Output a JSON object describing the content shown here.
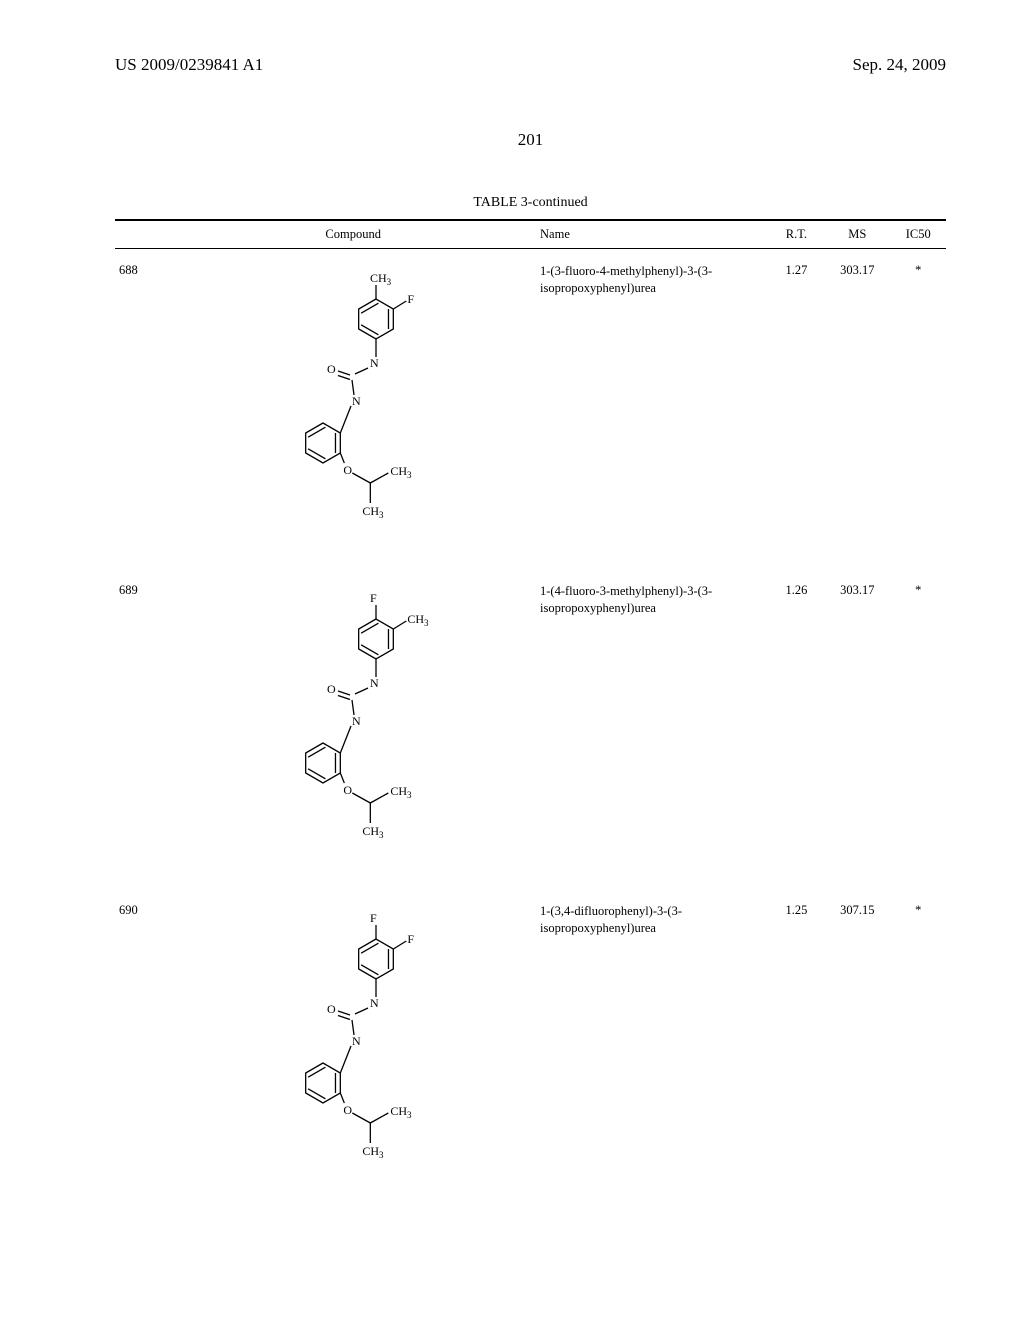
{
  "header": {
    "pub_number": "US 2009/0239841 A1",
    "pub_date": "Sep. 24, 2009"
  },
  "page_number": "201",
  "table": {
    "caption": "TABLE 3-continued",
    "columns": {
      "id": "",
      "compound": "Compound",
      "name": "Name",
      "rt": "R.T.",
      "ms": "MS",
      "ic50": "IC50"
    },
    "rows": [
      {
        "id": "688",
        "name": "1-(3-fluoro-4-methylphenyl)-3-(3-isopropoxyphenyl)urea",
        "rt": "1.27",
        "ms": "303.17",
        "ic50": "*",
        "sub1": "CH",
        "sub1_sub": "3",
        "sub2": "F"
      },
      {
        "id": "689",
        "name": "1-(4-fluoro-3-methylphenyl)-3-(3-isopropoxyphenyl)urea",
        "rt": "1.26",
        "ms": "303.17",
        "ic50": "*",
        "sub1": "F",
        "sub2": "CH",
        "sub2_sub": "3"
      },
      {
        "id": "690",
        "name": "1-(3,4-difluorophenyl)-3-(3-isopropoxyphenyl)urea",
        "rt": "1.25",
        "ms": "307.15",
        "ic50": "*",
        "sub1": "F",
        "sub2": "F"
      }
    ],
    "labels": {
      "O": "O",
      "N": "N",
      "CH3": "CH",
      "sub3": "3"
    }
  }
}
